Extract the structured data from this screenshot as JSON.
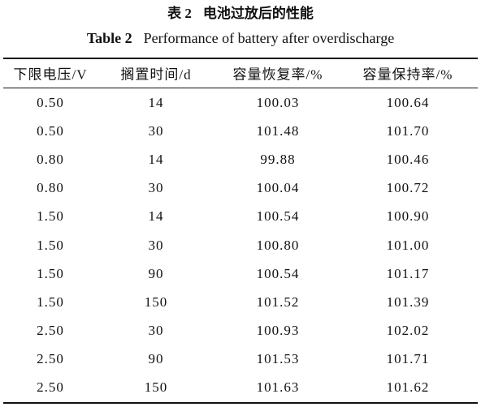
{
  "caption": {
    "label_zh": "表 2",
    "title_zh": "电池过放后的性能",
    "label_en": "Table 2",
    "title_en": "Performance of battery after overdischarge"
  },
  "table": {
    "header": [
      "下限电压/V",
      "搁置时间/d",
      "容量恢复率/%",
      "容量保持率/%"
    ],
    "rows": [
      [
        "0.50",
        "14",
        "100.03",
        "100.64"
      ],
      [
        "0.50",
        "30",
        "101.48",
        "101.70"
      ],
      [
        "0.80",
        "14",
        "99.88",
        "100.46"
      ],
      [
        "0.80",
        "30",
        "100.04",
        "100.72"
      ],
      [
        "1.50",
        "14",
        "100.54",
        "100.90"
      ],
      [
        "1.50",
        "30",
        "100.80",
        "101.00"
      ],
      [
        "1.50",
        "90",
        "100.54",
        "101.17"
      ],
      [
        "1.50",
        "150",
        "101.52",
        "101.39"
      ],
      [
        "2.50",
        "30",
        "100.93",
        "102.02"
      ],
      [
        "2.50",
        "90",
        "101.53",
        "101.71"
      ],
      [
        "2.50",
        "150",
        "101.63",
        "101.62"
      ]
    ]
  }
}
